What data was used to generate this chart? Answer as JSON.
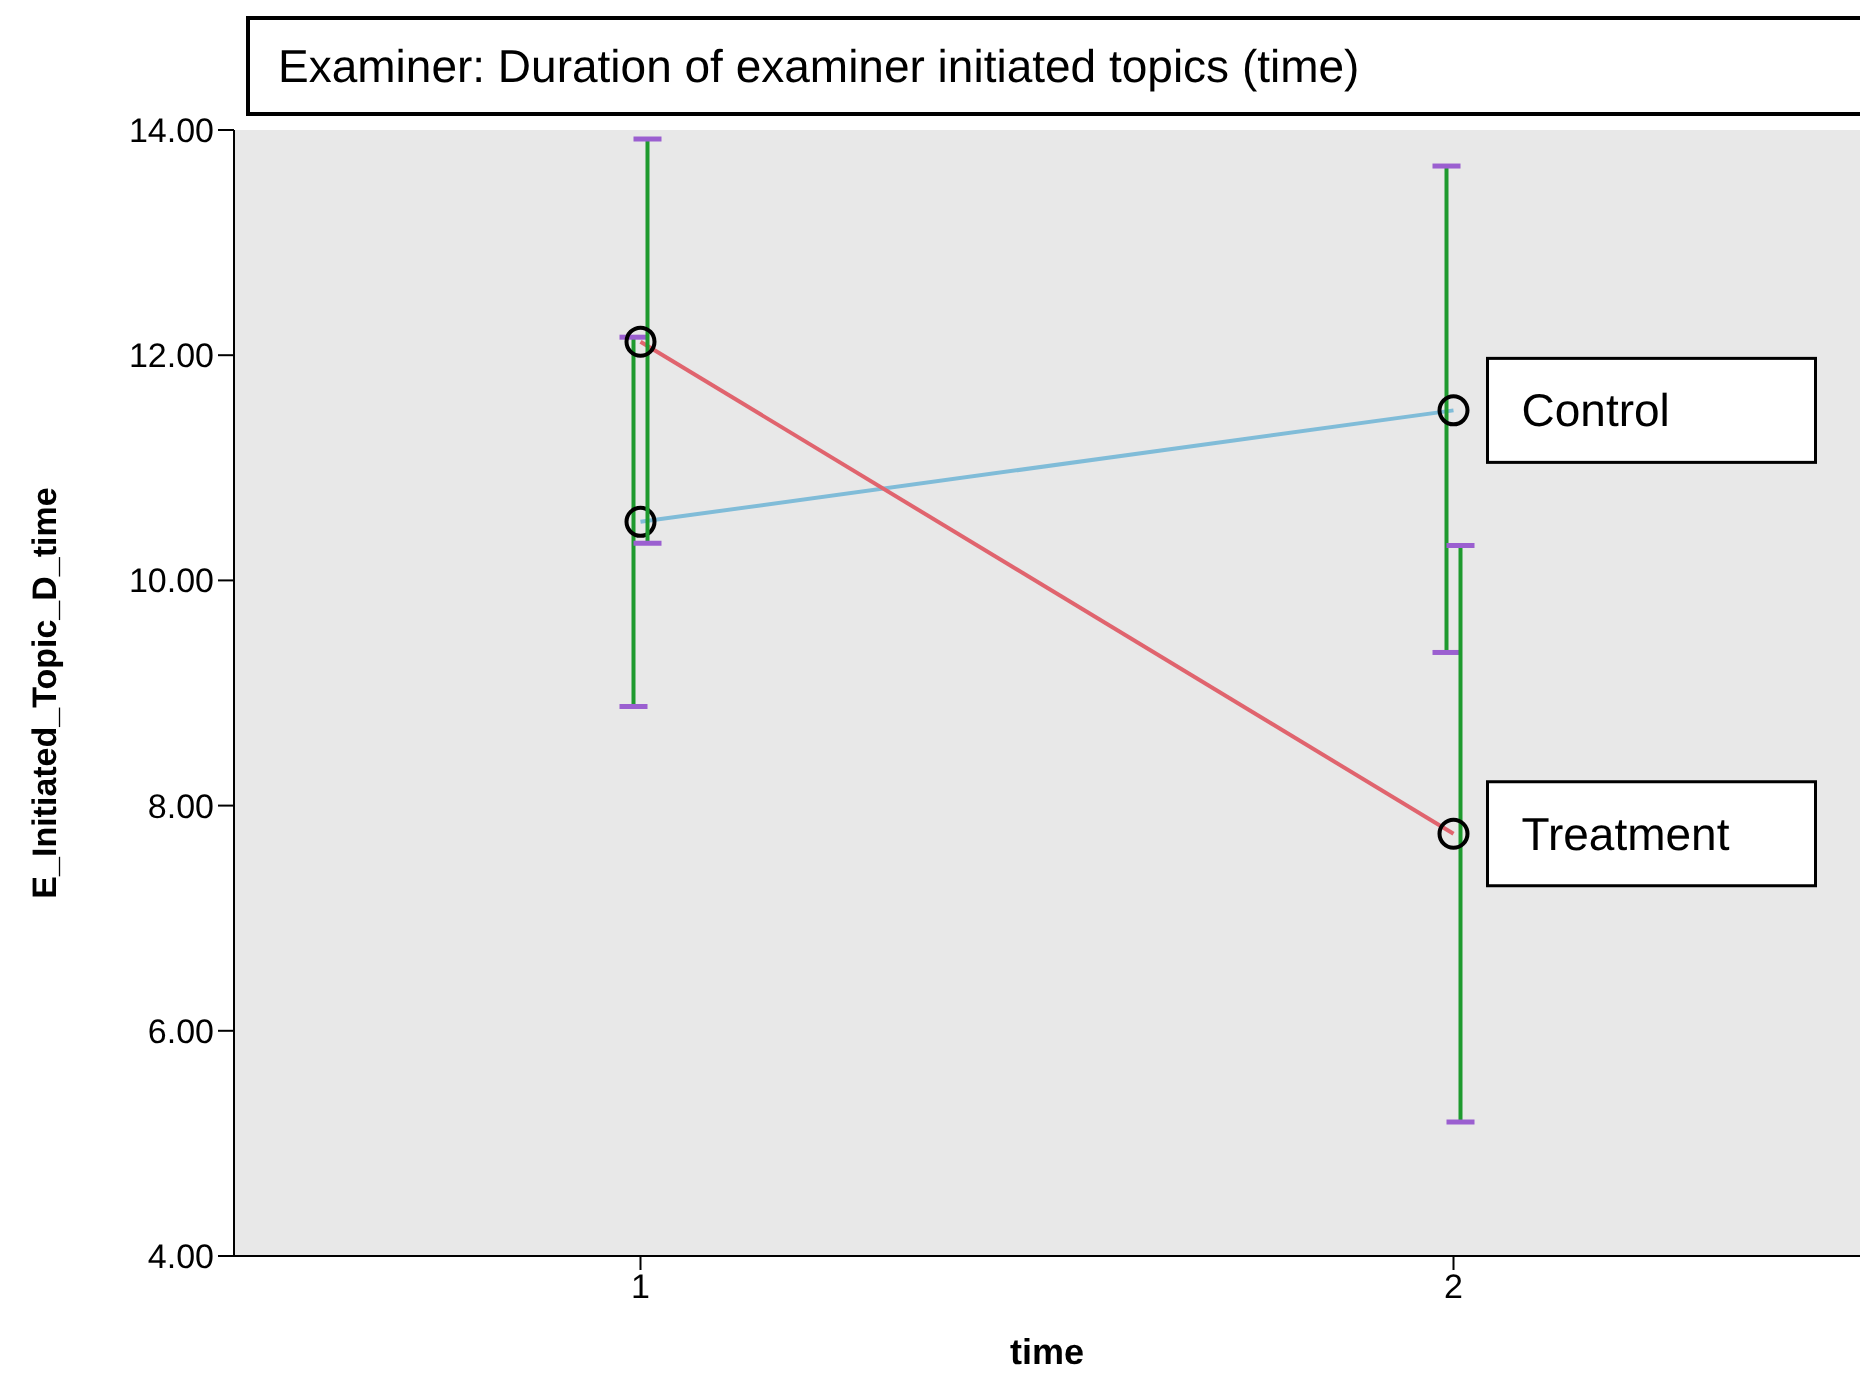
{
  "chart_data": {
    "type": "line",
    "title": "Examiner: Duration of examiner initiated topics (time)",
    "xlabel": "time",
    "ylabel": "E_Initiated_Topic_D_time",
    "categories": [
      "1",
      "2"
    ],
    "series": [
      {
        "name": "Control",
        "color": "#80bcd8",
        "values": [
          10.52,
          11.51
        ],
        "errors": [
          [
            8.88,
            12.16
          ],
          [
            9.36,
            13.68
          ]
        ]
      },
      {
        "name": "Treatment",
        "color": "#e0646e",
        "values": [
          12.12,
          7.75
        ],
        "errors": [
          [
            10.33,
            13.92
          ],
          [
            5.19,
            10.31
          ]
        ]
      }
    ],
    "ylim": [
      4,
      14
    ],
    "yticks": [
      {
        "value": 4,
        "label": "4.00"
      },
      {
        "value": 6,
        "label": "6.00"
      },
      {
        "value": 8,
        "label": "8.00"
      },
      {
        "value": 10,
        "label": "10.00"
      },
      {
        "value": 12,
        "label": "12.00"
      },
      {
        "value": 14,
        "label": "14.00"
      }
    ],
    "grid": false,
    "legend": false,
    "marker": "circle",
    "line_style": "solid"
  }
}
